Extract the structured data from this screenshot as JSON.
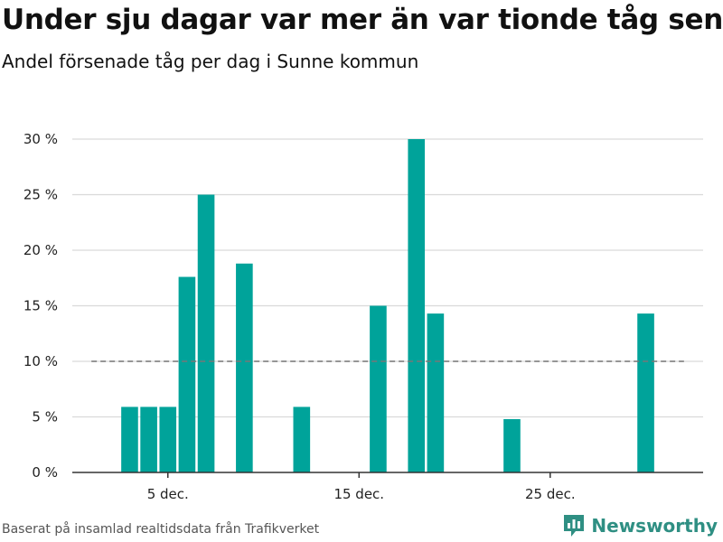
{
  "colors": {
    "bar": "#00a39a",
    "grid": "#d9d9d9",
    "reference": "#777777",
    "axis": "#333333",
    "brand": "#2f8f83"
  },
  "title": "Under sju dagar var mer än var tionde tåg sent",
  "subtitle": "Andel försenade tåg per dag i Sunne kommun",
  "footer": {
    "source": "Baserat på insamlad realtidsdata från Trafikverket",
    "brand": "Newsworthy"
  },
  "icons": {
    "logo": "newsworthy-bar-chart-icon"
  },
  "chart_data": {
    "type": "bar",
    "title": "Under sju dagar var mer än var tionde tåg sent",
    "subtitle": "Andel försenade tåg per dag i Sunne kommun",
    "xlabel": "",
    "ylabel": "",
    "x_domain": [
      0,
      33
    ],
    "ylim": [
      0,
      30
    ],
    "y_ticks": [
      0,
      5,
      10,
      15,
      20,
      25,
      30
    ],
    "y_tick_labels": [
      "0 %",
      "5 %",
      "10 %",
      "15 %",
      "20 %",
      "25 %",
      "30 %"
    ],
    "x_ticks": [
      5,
      15,
      25
    ],
    "x_tick_labels": [
      "5 dec.",
      "15 dec.",
      "25 dec."
    ],
    "grid": true,
    "reference_line": {
      "value": 10,
      "from_day": 1,
      "to_day": 32,
      "style": "dashed"
    },
    "series": [
      {
        "name": "Andel försenade tåg",
        "points": [
          {
            "day": 3,
            "value": 5.9
          },
          {
            "day": 4,
            "value": 5.9
          },
          {
            "day": 5,
            "value": 5.9
          },
          {
            "day": 6,
            "value": 17.6
          },
          {
            "day": 7,
            "value": 25.0
          },
          {
            "day": 9,
            "value": 18.8
          },
          {
            "day": 12,
            "value": 5.9
          },
          {
            "day": 16,
            "value": 15.0
          },
          {
            "day": 18,
            "value": 30.0
          },
          {
            "day": 19,
            "value": 14.3
          },
          {
            "day": 23,
            "value": 4.8
          },
          {
            "day": 30,
            "value": 14.3
          }
        ]
      }
    ]
  }
}
